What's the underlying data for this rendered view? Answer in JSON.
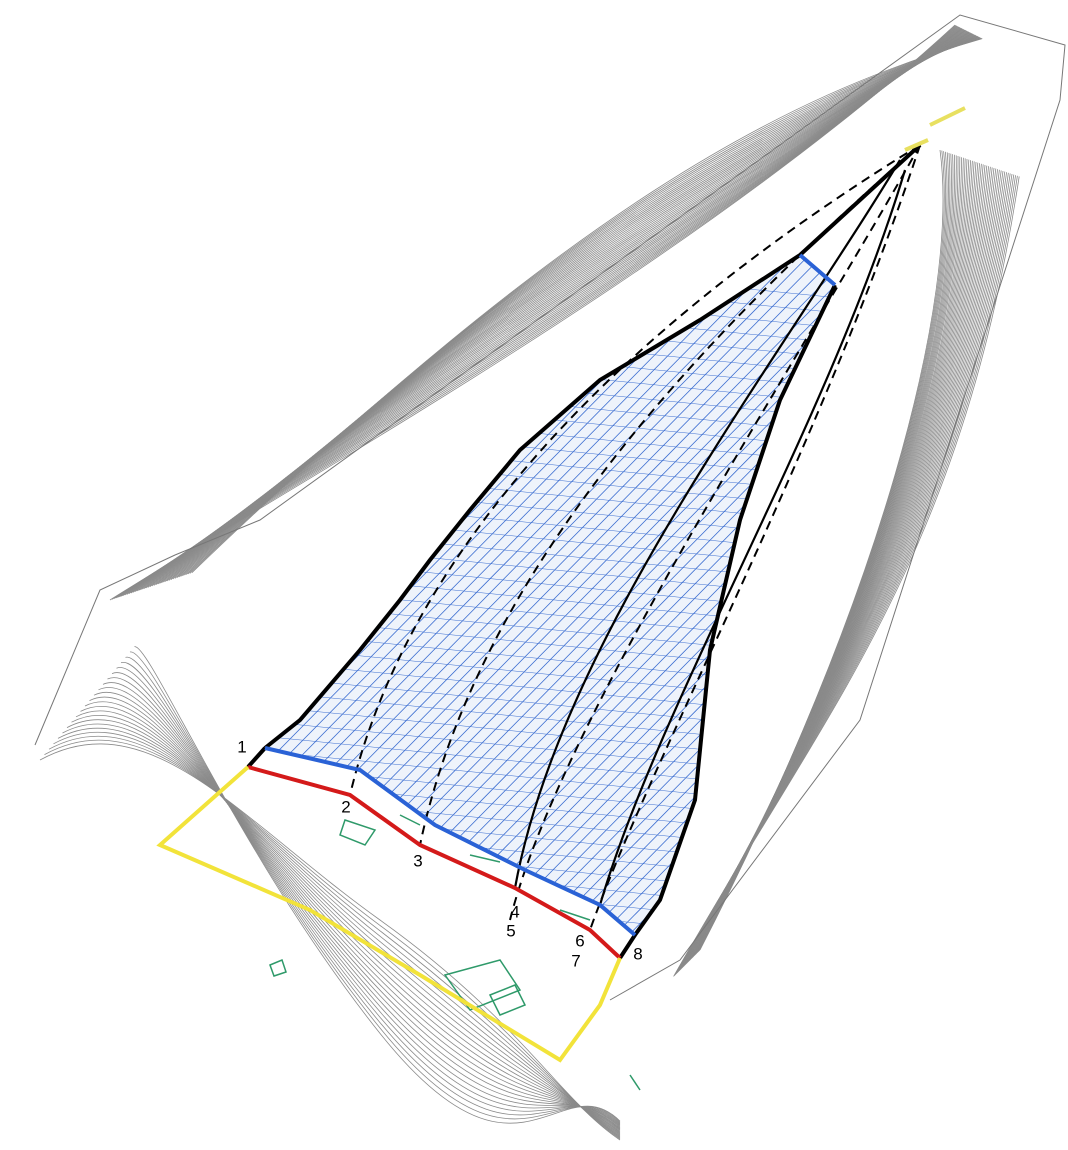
{
  "points": [
    {
      "label": "1"
    },
    {
      "label": "2"
    },
    {
      "label": "3"
    },
    {
      "label": "4"
    },
    {
      "label": "5"
    },
    {
      "label": "6"
    },
    {
      "label": "7"
    },
    {
      "label": "8"
    }
  ]
}
